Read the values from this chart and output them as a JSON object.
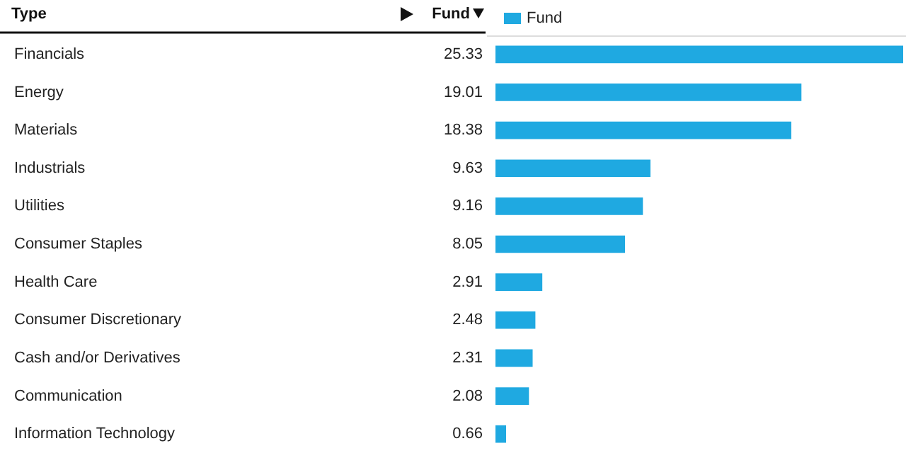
{
  "chart_data": {
    "type": "bar",
    "orientation": "horizontal",
    "ylabel": "Type",
    "xlabel": "Fund",
    "legend": "top left",
    "data_labels": true,
    "categories": [
      "Financials",
      "Energy",
      "Materials",
      "Industrials",
      "Utilities",
      "Consumer Staples",
      "Health Care",
      "Consumer Discretionary",
      "Cash and/or Derivatives",
      "Communication",
      "Information Technology"
    ],
    "series": [
      {
        "name": "Fund",
        "color": "#1fa9e1",
        "values": [
          25.33,
          19.01,
          18.38,
          9.63,
          9.16,
          8.05,
          2.91,
          2.48,
          2.31,
          2.08,
          0.66
        ]
      }
    ]
  }
}
